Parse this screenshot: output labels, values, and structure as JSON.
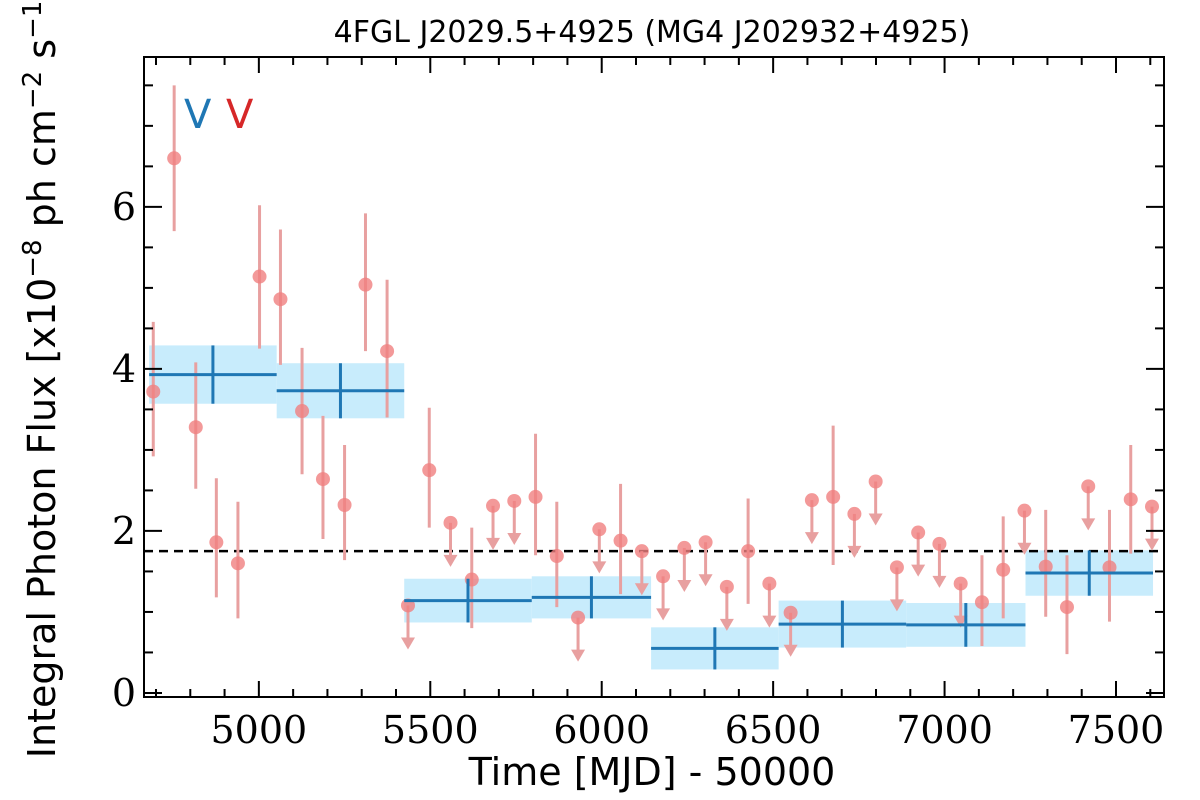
{
  "chart_data": {
    "type": "scatter",
    "title": "4FGL J2029.5+4925 (MG4 J202932+4925)",
    "xlabel": "Time [MJD] - 50000",
    "ylabel": "Integral Photon Flux [x10^-8 ph cm^-2 s^-1]",
    "ylabel_parts": {
      "base": "Integral Photon Flux [x10",
      "exp1": "−8",
      "mid": " ph cm",
      "exp2": "−2",
      "mid2": " s",
      "exp3": "−1",
      "end": "]"
    },
    "xlim": [
      4665,
      7640
    ],
    "ylim": [
      -0.05,
      7.85
    ],
    "xticks": [
      5000,
      5500,
      6000,
      6500,
      7000,
      7500
    ],
    "yticks": [
      0,
      2,
      4,
      6
    ],
    "reference_line": {
      "y": 1.75,
      "style": "dashed"
    },
    "legend": [
      {
        "label": "V",
        "color": "#1f77b4"
      },
      {
        "label": "V",
        "color": "#d62728"
      }
    ],
    "colors": {
      "points": "#f08080",
      "errorbars": "#e8a0a0",
      "bins": "#1f77b4",
      "bin_band": "#c8ecfc"
    },
    "binned_series": [
      {
        "xmin": 4680,
        "xmax": 5052,
        "y": 3.93,
        "err": 0.36
      },
      {
        "xmin": 5052,
        "xmax": 5424,
        "y": 3.73,
        "err": 0.34
      },
      {
        "xmin": 5424,
        "xmax": 5796,
        "y": 1.14,
        "err": 0.27
      },
      {
        "xmin": 5796,
        "xmax": 6144,
        "y": 1.18,
        "err": 0.26
      },
      {
        "xmin": 6144,
        "xmax": 6516,
        "y": 0.55,
        "err": 0.26
      },
      {
        "xmin": 6516,
        "xmax": 6888,
        "y": 0.85,
        "err": 0.29
      },
      {
        "xmin": 6888,
        "xmax": 7236,
        "y": 0.84,
        "err": 0.27
      },
      {
        "xmin": 7236,
        "xmax": 7608,
        "y": 1.48,
        "err": 0.28
      }
    ],
    "points_series": [
      {
        "x": 4692,
        "y": 3.72,
        "lo": 2.92,
        "hi": 4.58
      },
      {
        "x": 4753,
        "y": 6.6,
        "lo": 5.7,
        "hi": 7.5
      },
      {
        "x": 4816,
        "y": 3.28,
        "lo": 2.52,
        "hi": 4.08
      },
      {
        "x": 4876,
        "y": 1.86,
        "lo": 1.18,
        "hi": 2.65
      },
      {
        "x": 4939,
        "y": 1.6,
        "lo": 0.92,
        "hi": 2.36
      },
      {
        "x": 5002,
        "y": 5.14,
        "lo": 4.25,
        "hi": 6.02
      },
      {
        "x": 5063,
        "y": 4.86,
        "lo": 4.05,
        "hi": 5.72
      },
      {
        "x": 5126,
        "y": 3.48,
        "lo": 2.7,
        "hi": 4.26
      },
      {
        "x": 5187,
        "y": 2.64,
        "lo": 1.9,
        "hi": 3.42
      },
      {
        "x": 5250,
        "y": 2.32,
        "lo": 1.64,
        "hi": 3.06
      },
      {
        "x": 5311,
        "y": 5.04,
        "lo": 4.22,
        "hi": 5.92
      },
      {
        "x": 5374,
        "y": 4.22,
        "lo": 3.4,
        "hi": 5.1
      },
      {
        "x": 5435,
        "y": 1.08,
        "ul": true
      },
      {
        "x": 5497,
        "y": 2.75,
        "lo": 2.04,
        "hi": 3.52
      },
      {
        "x": 5559,
        "y": 2.1,
        "ul": true
      },
      {
        "x": 5621,
        "y": 1.4,
        "lo": 0.8,
        "hi": 2.04
      },
      {
        "x": 5683,
        "y": 2.31,
        "ul": true
      },
      {
        "x": 5745,
        "y": 2.37,
        "ul": true
      },
      {
        "x": 5807,
        "y": 2.42,
        "lo": 1.7,
        "hi": 3.2
      },
      {
        "x": 5869,
        "y": 1.69,
        "lo": 1.06,
        "hi": 2.36
      },
      {
        "x": 5931,
        "y": 0.93,
        "ul": true
      },
      {
        "x": 5993,
        "y": 2.02,
        "ul": true
      },
      {
        "x": 6055,
        "y": 1.88,
        "lo": 1.22,
        "hi": 2.58
      },
      {
        "x": 6117,
        "y": 1.75,
        "ul": true
      },
      {
        "x": 6179,
        "y": 1.44,
        "ul": true
      },
      {
        "x": 6241,
        "y": 1.79,
        "ul": true
      },
      {
        "x": 6303,
        "y": 1.86,
        "ul": true
      },
      {
        "x": 6365,
        "y": 1.31,
        "ul": true
      },
      {
        "x": 6427,
        "y": 1.75,
        "lo": 1.1,
        "hi": 2.4
      },
      {
        "x": 6489,
        "y": 1.35,
        "ul": true
      },
      {
        "x": 6551,
        "y": 0.99,
        "ul": true
      },
      {
        "x": 6613,
        "y": 2.38,
        "ul": true
      },
      {
        "x": 6675,
        "y": 2.42,
        "lo": 1.58,
        "hi": 3.3
      },
      {
        "x": 6737,
        "y": 2.21,
        "ul": true
      },
      {
        "x": 6799,
        "y": 2.61,
        "ul": true
      },
      {
        "x": 6861,
        "y": 1.55,
        "ul": true
      },
      {
        "x": 6923,
        "y": 1.98,
        "ul": true
      },
      {
        "x": 6985,
        "y": 1.84,
        "ul": true
      },
      {
        "x": 7047,
        "y": 1.35,
        "ul": true
      },
      {
        "x": 7109,
        "y": 1.12,
        "lo": 0.58,
        "hi": 1.7
      },
      {
        "x": 7171,
        "y": 1.52,
        "lo": 0.92,
        "hi": 2.18
      },
      {
        "x": 7233,
        "y": 2.25,
        "ul": true
      },
      {
        "x": 7295,
        "y": 1.56,
        "lo": 0.94,
        "hi": 2.26
      },
      {
        "x": 7357,
        "y": 1.06,
        "lo": 0.48,
        "hi": 1.7
      },
      {
        "x": 7419,
        "y": 2.55,
        "ul": true
      },
      {
        "x": 7481,
        "y": 1.55,
        "lo": 0.88,
        "hi": 2.26
      },
      {
        "x": 7543,
        "y": 2.39,
        "lo": 1.72,
        "hi": 3.06
      },
      {
        "x": 7605,
        "y": 2.3,
        "ul": true
      }
    ]
  }
}
